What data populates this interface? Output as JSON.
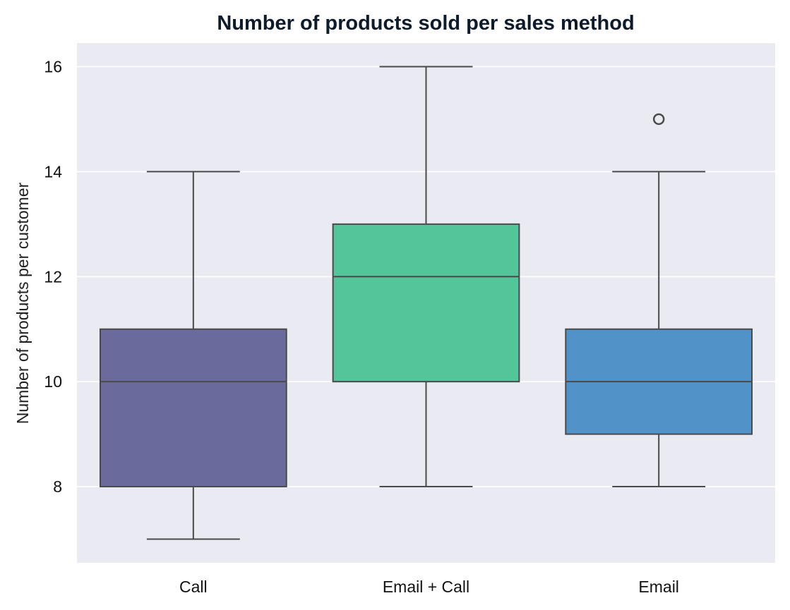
{
  "chart_data": {
    "type": "box",
    "title": "Number of products sold per sales method",
    "xlabel": "",
    "ylabel": "Number of products per customer",
    "ylim": [
      6.55,
      16.45
    ],
    "yticks": [
      8,
      10,
      12,
      14,
      16
    ],
    "ytick_labels": [
      "8",
      "10",
      "12",
      "14",
      "16"
    ],
    "grid": true,
    "categories": [
      "Call",
      "Email + Call",
      "Email"
    ],
    "boxes": [
      {
        "category": "Call",
        "whisker_low": 7,
        "q1": 8,
        "median": 10,
        "q3": 11,
        "whisker_high": 14,
        "outliers": [],
        "color": "#6a6b9c"
      },
      {
        "category": "Email + Call",
        "whisker_low": 8,
        "q1": 10,
        "median": 12,
        "q3": 13,
        "whisker_high": 16,
        "outliers": [],
        "color": "#54c59b"
      },
      {
        "category": "Email",
        "whisker_low": 8,
        "q1": 9,
        "median": 10,
        "q3": 11,
        "whisker_high": 14,
        "outliers": [
          15
        ],
        "color": "#5193c9"
      }
    ]
  },
  "colors": {
    "plot_background": "#eaeaf2",
    "grid": "#ffffff",
    "box_edge": "#4a4a4a"
  }
}
